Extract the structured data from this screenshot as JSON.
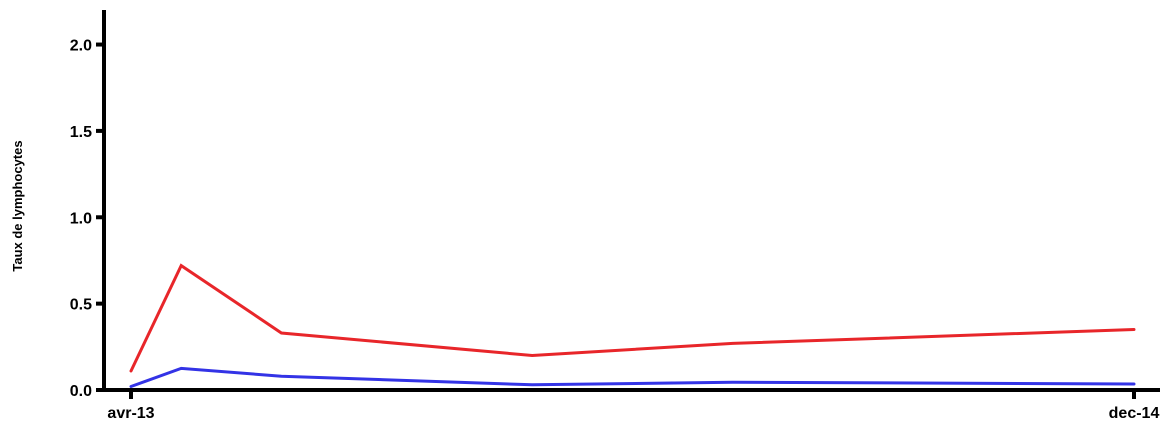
{
  "chart_data": {
    "type": "line",
    "title": "",
    "xlabel": "",
    "ylabel": "Taux de lymphocytes",
    "ylim": [
      0,
      2.2
    ],
    "yticks": [
      "0.0",
      "0.5",
      "1.0",
      "1.5",
      "2.0"
    ],
    "yticks_values": [
      0,
      0.5,
      1.0,
      1.5,
      2.0
    ],
    "x_tick_labels": [
      {
        "label": "avr-13",
        "x": 0
      },
      {
        "label": "dec-14",
        "x": 20
      }
    ],
    "xlim": [
      0,
      20
    ],
    "series": [
      {
        "color": "#e8262a",
        "x": [
          0,
          1,
          3,
          8,
          12,
          20
        ],
        "values": [
          0.11,
          0.72,
          0.33,
          0.2,
          0.27,
          0.35
        ]
      },
      {
        "color": "#3333e6",
        "x": [
          0,
          1,
          3,
          8,
          12,
          20
        ],
        "values": [
          0.02,
          0.125,
          0.08,
          0.03,
          0.045,
          0.035
        ]
      }
    ],
    "grid": false,
    "legend": "none"
  }
}
